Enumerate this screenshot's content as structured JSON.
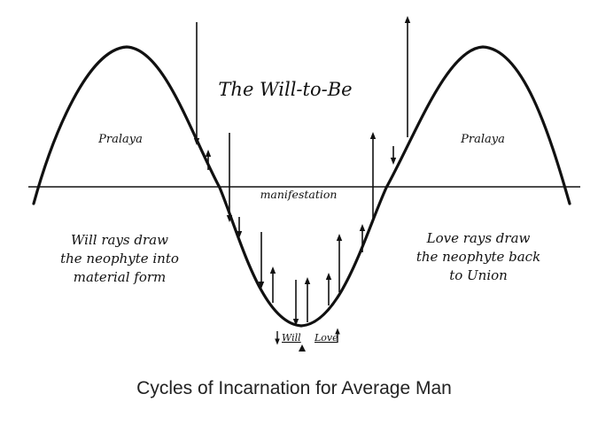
{
  "diagram": {
    "title": "The Will-to-Be",
    "axis_label": "manifestation",
    "left_pralaya": "Pralaya",
    "right_pralaya": "Pralaya",
    "left_text": [
      "Will rays draw",
      "the neophyte into",
      "material form"
    ],
    "right_text": [
      "Love rays draw",
      "the neophyte back",
      "to Union"
    ],
    "will_label": "Will",
    "love_label": "Love",
    "caption": "Cycles of Incarnation for Average Man"
  },
  "colors": {
    "ink": "#111111",
    "caption": "#222222"
  },
  "icons": {
    "will_marker": "down-arrow-icon",
    "love_marker": "up-arrow-icon",
    "pivot": "triangle-icon"
  }
}
